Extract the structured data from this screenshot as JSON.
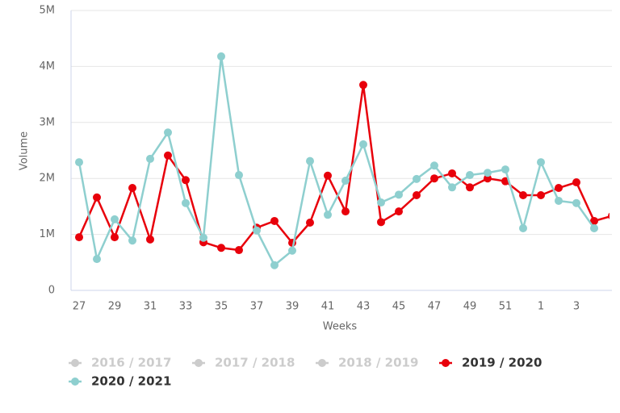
{
  "chart_data": {
    "type": "line",
    "y_label": "Volume",
    "x_label": "Weeks",
    "categories": [
      "27",
      null,
      "29",
      null,
      "31",
      null,
      "33",
      null,
      "35",
      null,
      "37",
      null,
      "39",
      null,
      "41",
      null,
      "43",
      null,
      "45",
      null,
      "47",
      null,
      "49",
      null,
      "51",
      null,
      "1",
      null,
      "3",
      null,
      null
    ],
    "ylim": [
      0,
      5000000
    ],
    "yticks": [
      0,
      {
        "value": 1000000,
        "label": "1M"
      },
      {
        "value": 2000000,
        "label": "2M"
      },
      {
        "value": 3000000,
        "label": "3M"
      },
      {
        "value": 4000000,
        "label": "4M"
      },
      {
        "value": 5000000,
        "label": "5M"
      }
    ],
    "grid": true,
    "series": [
      {
        "name": "2016 / 2017",
        "color": "#cccccc",
        "visible": false,
        "values": [
          null,
          null,
          null,
          null,
          null,
          null,
          null,
          null,
          null,
          null,
          null,
          null,
          null,
          null,
          null,
          null,
          null,
          null,
          null,
          null,
          null,
          null,
          null,
          null,
          null,
          null,
          null,
          null,
          null,
          null,
          null
        ]
      },
      {
        "name": "2017 / 2018",
        "color": "#cccccc",
        "visible": false,
        "values": [
          null,
          null,
          null,
          null,
          null,
          null,
          null,
          null,
          null,
          null,
          null,
          null,
          null,
          null,
          null,
          null,
          null,
          null,
          null,
          null,
          null,
          null,
          null,
          null,
          null,
          null,
          null,
          null,
          null,
          null,
          null
        ]
      },
      {
        "name": "2018 / 2019",
        "color": "#cccccc",
        "visible": false,
        "values": [
          null,
          null,
          null,
          null,
          null,
          null,
          null,
          null,
          null,
          null,
          null,
          null,
          null,
          null,
          null,
          null,
          null,
          null,
          null,
          null,
          null,
          null,
          null,
          null,
          null,
          null,
          null,
          null,
          null,
          null,
          null
        ]
      },
      {
        "name": "2019 / 2020",
        "color": "#e8000b",
        "visible": true,
        "values": [
          950000,
          1660000,
          950000,
          1830000,
          910000,
          2410000,
          1970000,
          860000,
          760000,
          720000,
          1120000,
          1240000,
          850000,
          1210000,
          2050000,
          1410000,
          3670000,
          1220000,
          1410000,
          1700000,
          2000000,
          2090000,
          1840000,
          2000000,
          1950000,
          1700000,
          1700000,
          1830000,
          1930000,
          1240000,
          1330000
        ]
      },
      {
        "name": "2020 / 2021",
        "color": "#8ecfcf",
        "visible": true,
        "values": [
          2290000,
          560000,
          1270000,
          890000,
          2350000,
          2820000,
          1560000,
          940000,
          4180000,
          2060000,
          1070000,
          450000,
          710000,
          2310000,
          1350000,
          1960000,
          2610000,
          1570000,
          1710000,
          1990000,
          2230000,
          1840000,
          2060000,
          2100000,
          2160000,
          1110000,
          2290000,
          1600000,
          1560000,
          1110000,
          null
        ]
      }
    ]
  }
}
